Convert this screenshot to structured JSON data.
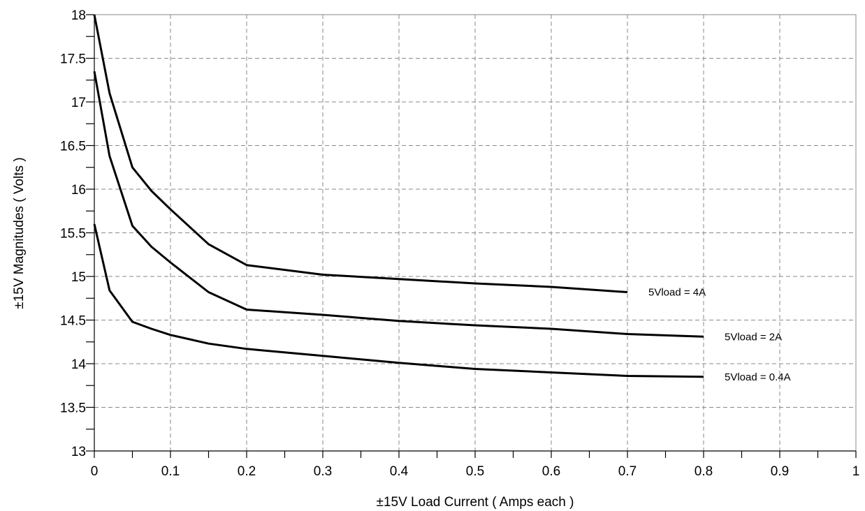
{
  "chart_data": {
    "type": "line",
    "title": "",
    "xlabel": "±15V Load Current ( Amps each )",
    "ylabel": "±15V Magnitudes ( Volts )",
    "xlim": [
      0,
      1
    ],
    "ylim": [
      13,
      18
    ],
    "grid": true,
    "x_ticks": [
      {
        "value": 0,
        "label": "0"
      },
      {
        "value": 0.1,
        "label": "0.1"
      },
      {
        "value": 0.2,
        "label": "0.2"
      },
      {
        "value": 0.3,
        "label": "0.3"
      },
      {
        "value": 0.4,
        "label": "0.4"
      },
      {
        "value": 0.5,
        "label": "0.5"
      },
      {
        "value": 0.6,
        "label": "0.6"
      },
      {
        "value": 0.7,
        "label": "0.7"
      },
      {
        "value": 0.8,
        "label": "0.8"
      },
      {
        "value": 0.9,
        "label": "0.9"
      },
      {
        "value": 1,
        "label": "1"
      }
    ],
    "y_ticks": [
      {
        "value": 13,
        "label": "13"
      },
      {
        "value": 13.5,
        "label": "13.5"
      },
      {
        "value": 14,
        "label": "14"
      },
      {
        "value": 14.5,
        "label": "14.5"
      },
      {
        "value": 15,
        "label": "15"
      },
      {
        "value": 15.5,
        "label": "15.5"
      },
      {
        "value": 16,
        "label": "16"
      },
      {
        "value": 16.5,
        "label": "16.5"
      },
      {
        "value": 17,
        "label": "17"
      },
      {
        "value": 17.5,
        "label": "17.5"
      },
      {
        "value": 18,
        "label": "18"
      }
    ],
    "series": [
      {
        "name": "5Vload = 4A",
        "x": [
          0,
          0.02,
          0.05,
          0.075,
          0.1,
          0.15,
          0.2,
          0.3,
          0.4,
          0.5,
          0.6,
          0.7
        ],
        "y": [
          18.0,
          17.1,
          16.25,
          15.98,
          15.77,
          15.37,
          15.13,
          15.02,
          14.97,
          14.92,
          14.88,
          14.82
        ]
      },
      {
        "name": "5Vload = 2A",
        "x": [
          0,
          0.02,
          0.05,
          0.075,
          0.1,
          0.15,
          0.2,
          0.3,
          0.4,
          0.5,
          0.6,
          0.7,
          0.8
        ],
        "y": [
          17.35,
          16.38,
          15.58,
          15.34,
          15.16,
          14.82,
          14.62,
          14.56,
          14.49,
          14.44,
          14.4,
          14.34,
          14.31
        ]
      },
      {
        "name": "5Vload = 0.4A",
        "x": [
          0,
          0.02,
          0.05,
          0.075,
          0.1,
          0.15,
          0.2,
          0.3,
          0.4,
          0.5,
          0.6,
          0.7,
          0.8
        ],
        "y": [
          15.6,
          14.84,
          14.48,
          14.4,
          14.33,
          14.23,
          14.17,
          14.09,
          14.01,
          13.94,
          13.9,
          13.86,
          13.85
        ]
      }
    ]
  }
}
